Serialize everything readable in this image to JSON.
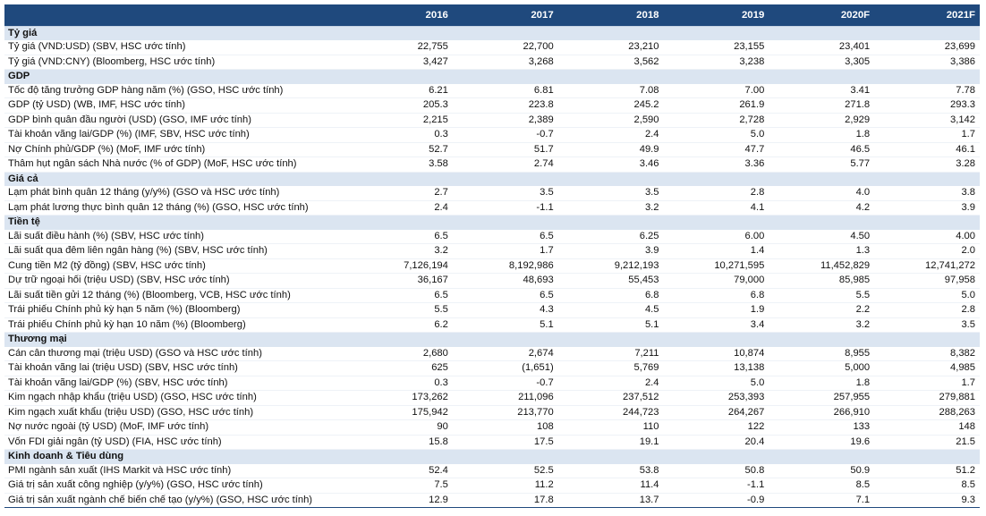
{
  "header": {
    "years": [
      "2016",
      "2017",
      "2018",
      "2019",
      "2020F",
      "2021F"
    ]
  },
  "sections": [
    {
      "title": "Tỷ giá",
      "rows": [
        {
          "label": "Tỷ giá (VND:USD) (SBV, HSC ước tính)",
          "values": [
            "22,755",
            "22,700",
            "23,210",
            "23,155",
            "23,401",
            "23,699"
          ]
        },
        {
          "label": "Tỷ giá (VND:CNY) (Bloomberg, HSC ước tính)",
          "values": [
            "3,427",
            "3,268",
            "3,562",
            "3,238",
            "3,305",
            "3,386"
          ]
        }
      ]
    },
    {
      "title": "GDP",
      "rows": [
        {
          "label": "Tốc độ tăng trưởng GDP hàng năm (%) (GSO, HSC ước tính)",
          "values": [
            "6.21",
            "6.81",
            "7.08",
            "7.00",
            "3.41",
            "7.78"
          ]
        },
        {
          "label": "GDP (tỷ USD) (WB, IMF, HSC ước tính)",
          "values": [
            "205.3",
            "223.8",
            "245.2",
            "261.9",
            "271.8",
            "293.3"
          ]
        },
        {
          "label": "GDP bình quân đầu người (USD) (GSO, IMF ước tính)",
          "values": [
            "2,215",
            "2,389",
            "2,590",
            "2,728",
            "2,929",
            "3,142"
          ]
        },
        {
          "label": "Tài khoản vãng lai/GDP (%) (IMF, SBV, HSC ước tính)",
          "values": [
            "0.3",
            "-0.7",
            "2.4",
            "5.0",
            "1.8",
            "1.7"
          ]
        },
        {
          "label": "Nợ Chính phủ/GDP (%) (MoF, IMF ước tính)",
          "values": [
            "52.7",
            "51.7",
            "49.9",
            "47.7",
            "46.5",
            "46.1"
          ]
        },
        {
          "label": "Thâm hụt ngân sách Nhà nước (% of GDP) (MoF, HSC ước tính)",
          "values": [
            "3.58",
            "2.74",
            "3.46",
            "3.36",
            "5.77",
            "3.28"
          ]
        }
      ]
    },
    {
      "title": "Giá cả",
      "rows": [
        {
          "label": "Lạm phát bình quân 12 tháng (y/y%) (GSO và HSC ước tính)",
          "values": [
            "2.7",
            "3.5",
            "3.5",
            "2.8",
            "4.0",
            "3.8"
          ]
        },
        {
          "label": "Lạm phát lương thực bình quân 12 tháng (%) (GSO, HSC ước tính)",
          "values": [
            "2.4",
            "-1.1",
            "3.2",
            "4.1",
            "4.2",
            "3.9"
          ]
        }
      ]
    },
    {
      "title": "Tiền tệ",
      "rows": [
        {
          "label": "Lãi suất điều hành (%) (SBV, HSC ước tính)",
          "values": [
            "6.5",
            "6.5",
            "6.25",
            "6.00",
            "4.50",
            "4.00"
          ]
        },
        {
          "label": "Lãi suất qua đêm liên ngân hàng (%) (SBV, HSC ước tính)",
          "values": [
            "3.2",
            "1.7",
            "3.9",
            "1.4",
            "1.3",
            "2.0"
          ]
        },
        {
          "label": "Cung tiền M2 (tỷ đồng) (SBV, HSC ước tính)",
          "values": [
            "7,126,194",
            "8,192,986",
            "9,212,193",
            "10,271,595",
            "11,452,829",
            "12,741,272"
          ]
        },
        {
          "label": "Dự trữ ngoại hối (triệu USD) (SBV, HSC ước tính)",
          "values": [
            "36,167",
            "48,693",
            "55,453",
            "79,000",
            "85,985",
            "97,958"
          ]
        },
        {
          "label": "Lãi suất tiền gửi 12 tháng (%) (Bloomberg, VCB, HSC ước tính)",
          "values": [
            "6.5",
            "6.5",
            "6.8",
            "6.8",
            "5.5",
            "5.0"
          ]
        },
        {
          "label": "Trái phiếu Chính phủ kỳ hạn 5 năm (%) (Bloomberg)",
          "values": [
            "5.5",
            "4.3",
            "4.5",
            "1.9",
            "2.2",
            "2.8"
          ]
        },
        {
          "label": "Trái phiếu Chính phủ kỳ hạn 10 năm (%) (Bloomberg)",
          "values": [
            "6.2",
            "5.1",
            "5.1",
            "3.4",
            "3.2",
            "3.5"
          ]
        }
      ]
    },
    {
      "title": "Thương mại",
      "rows": [
        {
          "label": "Cán cân thương mại (triệu USD) (GSO và HSC ước tính)",
          "values": [
            "2,680",
            "2,674",
            "7,211",
            "10,874",
            "8,955",
            "8,382"
          ]
        },
        {
          "label": "Tài khoản vãng lai (triệu USD) (SBV, HSC ước tính)",
          "values": [
            "625",
            "(1,651)",
            "5,769",
            "13,138",
            "5,000",
            "4,985"
          ]
        },
        {
          "label": "Tài khoản vãng lai/GDP (%) (SBV, HSC ước tính)",
          "values": [
            "0.3",
            "-0.7",
            "2.4",
            "5.0",
            "1.8",
            "1.7"
          ]
        },
        {
          "label": "Kim ngạch nhập khẩu (triệu USD) (GSO, HSC ước tính)",
          "values": [
            "173,262",
            "211,096",
            "237,512",
            "253,393",
            "257,955",
            "279,881"
          ]
        },
        {
          "label": "Kim ngạch xuất khẩu (triệu USD) (GSO, HSC ước tính)",
          "values": [
            "175,942",
            "213,770",
            "244,723",
            "264,267",
            "266,910",
            "288,263"
          ]
        },
        {
          "label": "Nợ nước ngoài (tỷ USD) (MoF, IMF ước tính)",
          "values": [
            "90",
            "108",
            "110",
            "122",
            "133",
            "148"
          ]
        },
        {
          "label": "Vốn FDI giải ngân (tỷ USD) (FIA, HSC ước tính)",
          "values": [
            "15.8",
            "17.5",
            "19.1",
            "20.4",
            "19.6",
            "21.5"
          ]
        }
      ]
    },
    {
      "title": "Kinh doanh & Tiêu dùng",
      "rows": [
        {
          "label": "PMI ngành sản xuất (IHS Markit và HSC ước tính)",
          "values": [
            "52.4",
            "52.5",
            "53.8",
            "50.8",
            "50.9",
            "51.2"
          ]
        },
        {
          "label": "Giá trị sản xuất công nghiệp (y/y%) (GSO, HSC ước tính)",
          "values": [
            "7.5",
            "11.2",
            "11.4",
            "-1.1",
            "8.5",
            "8.5"
          ]
        },
        {
          "label": "Giá trị sản xuất ngành chế biến chế tạo (y/y%) (GSO, HSC ước tính)",
          "values": [
            "12.9",
            "17.8",
            "13.7",
            "-0.9",
            "7.1",
            "9.3"
          ]
        }
      ]
    }
  ]
}
